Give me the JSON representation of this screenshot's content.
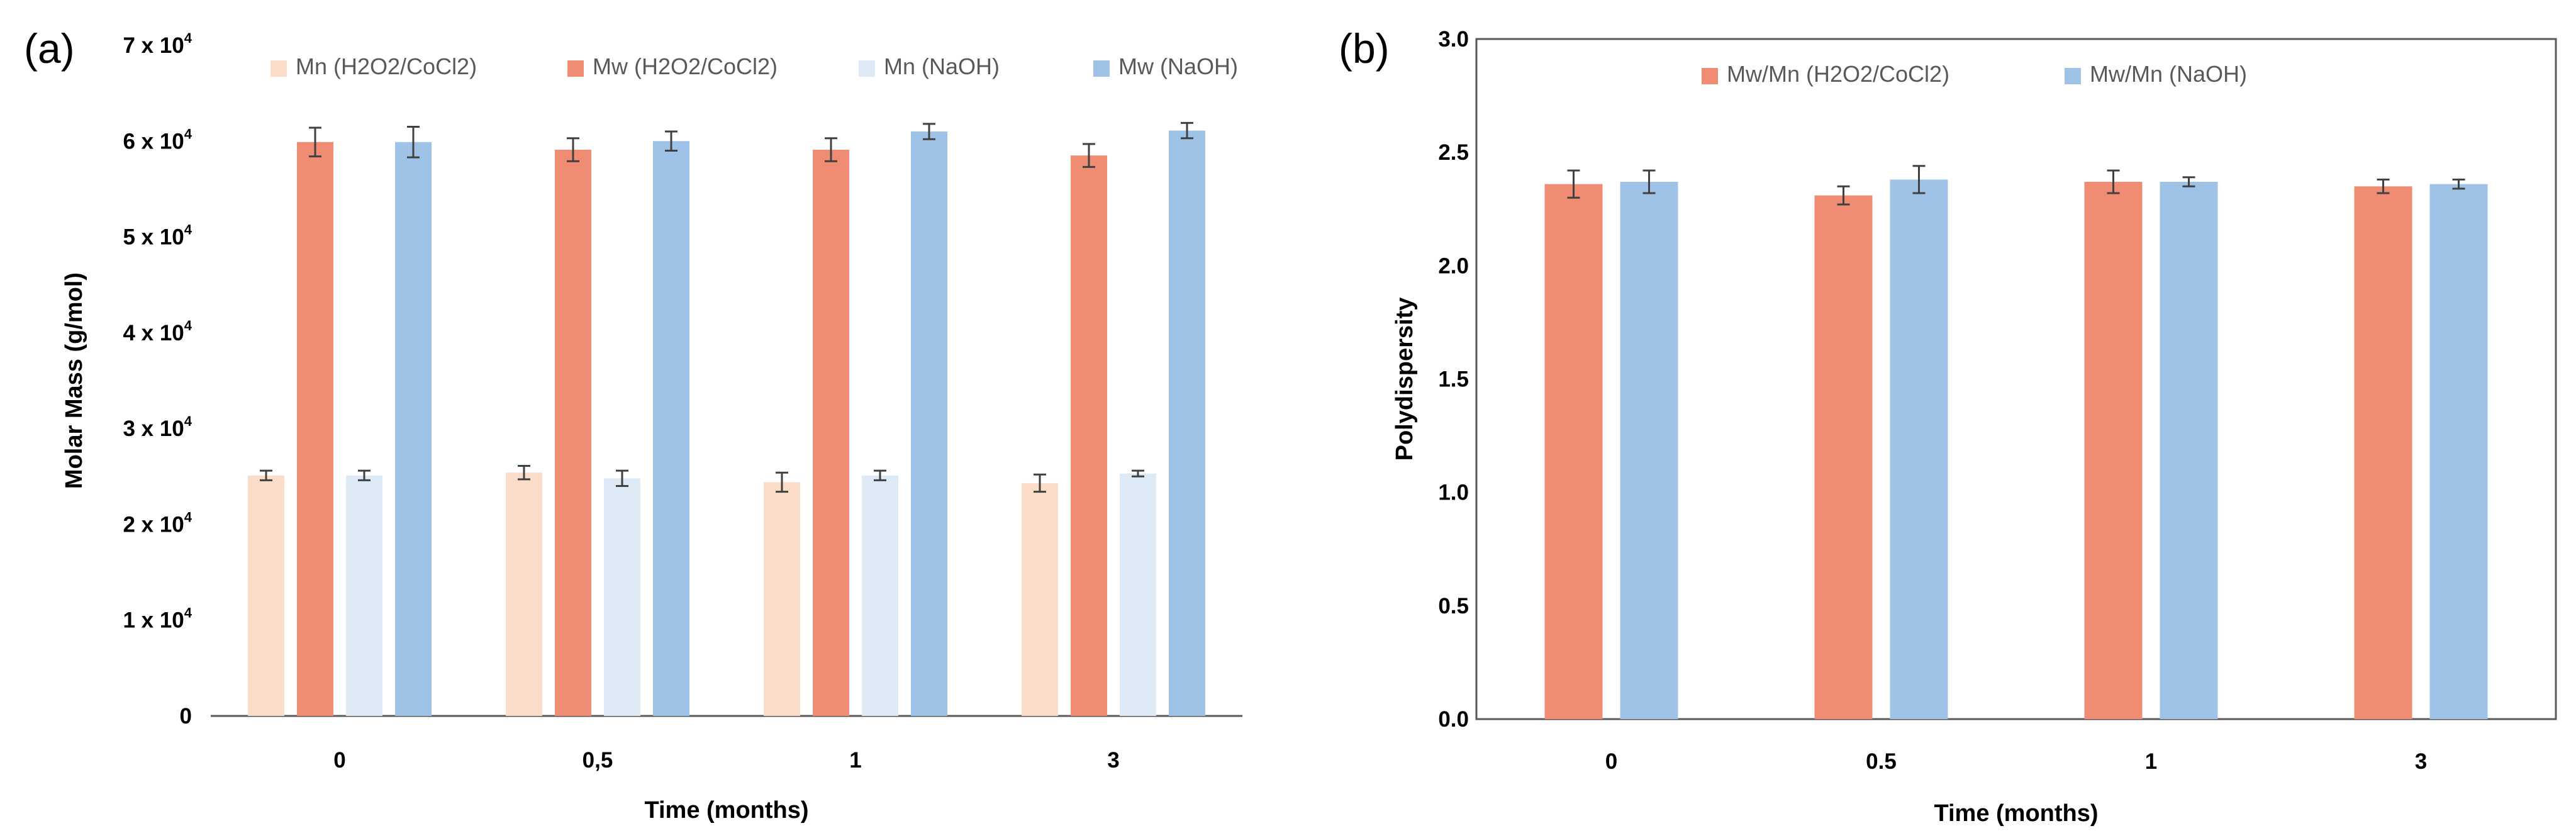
{
  "chart_data": [
    {
      "panel_label": "(a)",
      "type": "bar",
      "title": "",
      "xlabel": "Time (months)",
      "ylabel": "Molar Mass (g/mol)",
      "categories": [
        "0",
        "0,5",
        "1",
        "3"
      ],
      "ylim": [
        0,
        70000
      ],
      "yticks": [
        {
          "value": 0,
          "label": "0"
        },
        {
          "value": 10000,
          "label": "1 x 10",
          "exp": "4"
        },
        {
          "value": 20000,
          "label": "2 x 10",
          "exp": "4"
        },
        {
          "value": 30000,
          "label": "3 x 10",
          "exp": "4"
        },
        {
          "value": 40000,
          "label": "4 x 10",
          "exp": "4"
        },
        {
          "value": 50000,
          "label": "5 x 10",
          "exp": "4"
        },
        {
          "value": 60000,
          "label": "6 x 10",
          "exp": "4"
        },
        {
          "value": 70000,
          "label": "7 x 10",
          "exp": "4"
        }
      ],
      "grid": false,
      "legend_position": "top",
      "series": [
        {
          "name": "Mn (H2O2/CoCl2)",
          "color": "#fbdcc8",
          "values": [
            25100,
            25400,
            24400,
            24300
          ],
          "errors": [
            500,
            700,
            1000,
            900
          ]
        },
        {
          "name": "Mw (H2O2/CoCl2)",
          "color": "#f08c73",
          "values": [
            59900,
            59100,
            59100,
            58500
          ],
          "errors": [
            1500,
            1200,
            1200,
            1200
          ]
        },
        {
          "name": "Mn (NaOH)",
          "color": "#dee9f6",
          "values": [
            25100,
            24800,
            25100,
            25300
          ],
          "errors": [
            500,
            800,
            500,
            300
          ]
        },
        {
          "name": "Mw (NaOH)",
          "color": "#9fc3e7",
          "values": [
            59900,
            60000,
            61000,
            61100
          ],
          "errors": [
            1600,
            1000,
            800,
            800
          ]
        }
      ]
    },
    {
      "panel_label": "(b)",
      "type": "bar",
      "title": "",
      "xlabel": "Time (months)",
      "ylabel": "Polydispersity",
      "categories": [
        "0",
        "0.5",
        "1",
        "3"
      ],
      "ylim": [
        0,
        3.0
      ],
      "yticks": [
        {
          "value": 0,
          "label": "0.0"
        },
        {
          "value": 0.5,
          "label": "0.5"
        },
        {
          "value": 1.0,
          "label": "1.0"
        },
        {
          "value": 1.5,
          "label": "1.5"
        },
        {
          "value": 2.0,
          "label": "2.0"
        },
        {
          "value": 2.5,
          "label": "2.5"
        },
        {
          "value": 3.0,
          "label": "3.0"
        }
      ],
      "grid": false,
      "legend_position": "top",
      "series": [
        {
          "name": "Mw/Mn (H2O2/CoCl2)",
          "color": "#f08c73",
          "values": [
            2.36,
            2.31,
            2.37,
            2.35
          ],
          "errors": [
            0.06,
            0.04,
            0.05,
            0.03
          ]
        },
        {
          "name": "Mw/Mn (NaOH)",
          "color": "#9fc3e7",
          "values": [
            2.37,
            2.38,
            2.37,
            2.36
          ],
          "errors": [
            0.05,
            0.06,
            0.02,
            0.02
          ]
        }
      ]
    }
  ]
}
